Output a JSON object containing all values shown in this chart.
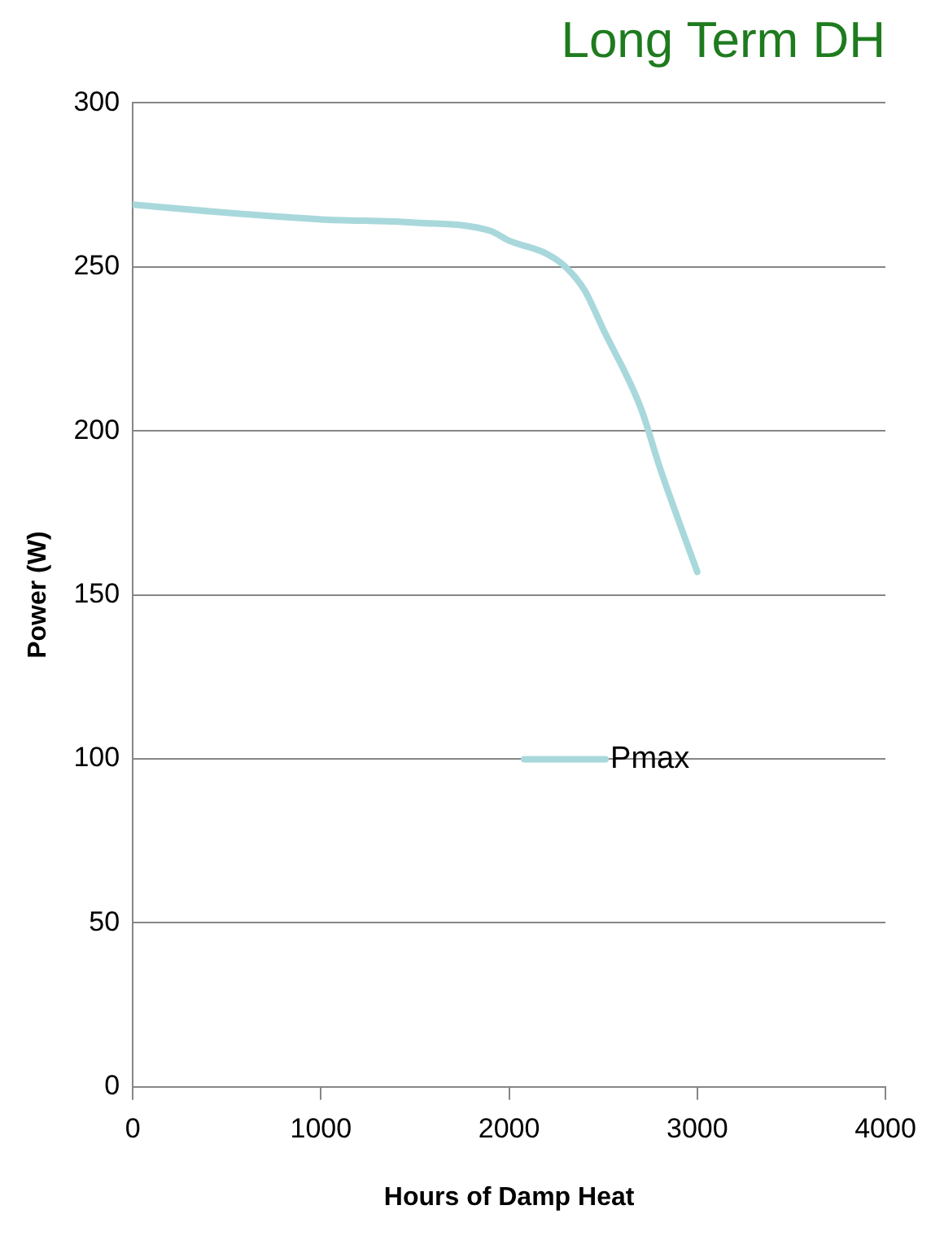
{
  "chart_data": {
    "type": "line",
    "title": "Long Term DH",
    "xlabel": "Hours of Damp Heat",
    "ylabel": "Power (W)",
    "x": [
      0,
      500,
      1000,
      1500,
      1900,
      2000,
      2200,
      2300,
      2400,
      2500,
      2700,
      2800,
      3000
    ],
    "series": [
      {
        "name": "Pmax",
        "color": "#a8d8dc",
        "values": [
          269,
          266.5,
          264.5,
          263.5,
          261,
          258,
          254,
          250,
          243,
          231,
          207,
          189,
          157
        ]
      }
    ],
    "xlim": [
      0,
      4000
    ],
    "xticks": [
      0,
      1000,
      2000,
      3000,
      4000
    ],
    "ylim": [
      0,
      300
    ],
    "yticks": [
      0,
      50,
      100,
      150,
      200,
      250,
      300
    ],
    "grid": "y",
    "legend": "center right",
    "marker": "none",
    "line_style": "solid"
  }
}
